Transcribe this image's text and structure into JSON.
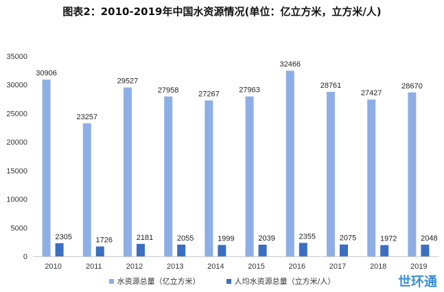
{
  "title": "图表2：2010-2019年中国水资源情况(单位：亿立方米，立方米/人)",
  "watermark": "世环通",
  "chart_data": {
    "type": "bar",
    "categories": [
      "2010",
      "2011",
      "2012",
      "2013",
      "2014",
      "2015",
      "2016",
      "2017",
      "2018",
      "2019"
    ],
    "series": [
      {
        "name": "水资源总量（亿立方米）",
        "values": [
          30906,
          23257,
          29527,
          27958,
          27267,
          27963,
          32466,
          28761,
          27427,
          28670
        ],
        "color": "#8eaee6"
      },
      {
        "name": "人均水资源总量（立方米/人）",
        "values": [
          2305,
          1726,
          2181,
          2055,
          1999,
          2039,
          2355,
          2075,
          1972,
          2048
        ],
        "color": "#3a6fc4"
      }
    ],
    "ylim": [
      0,
      35000
    ],
    "yticks": [
      0,
      5000,
      10000,
      15000,
      20000,
      25000,
      30000,
      35000
    ],
    "grid": false,
    "legend_position": "bottom"
  }
}
